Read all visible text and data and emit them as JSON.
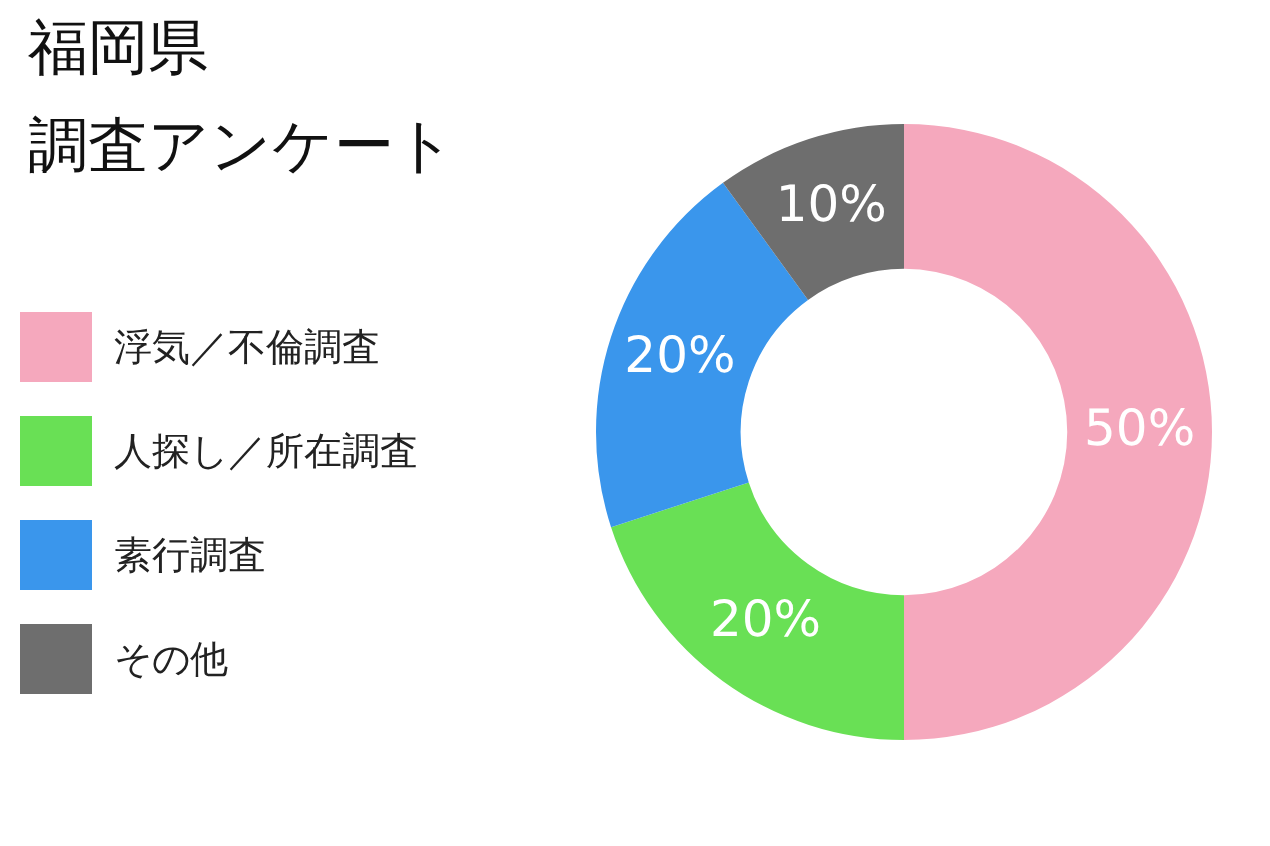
{
  "chart_data": {
    "type": "donut",
    "title": "福岡県",
    "subtitle": "調査アンケート",
    "categories": [
      "浮気／不倫調査",
      "人探し／所在調査",
      "素行調査",
      "その他"
    ],
    "values": [
      50,
      20,
      20,
      10
    ],
    "colors": [
      "#f5a8bd",
      "#69e055",
      "#3a96ec",
      "#6e6e6e"
    ],
    "value_labels": [
      "50%",
      "20%",
      "20%",
      "10%"
    ],
    "legend": "left"
  }
}
